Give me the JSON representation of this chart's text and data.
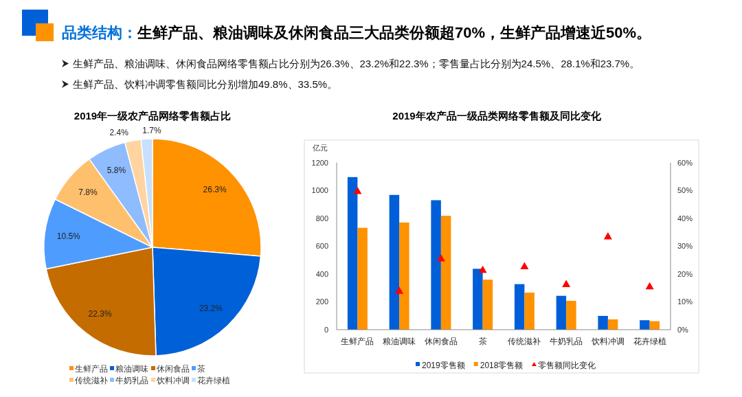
{
  "chart_data": [
    {
      "type": "other",
      "title": "品类结构：",
      "subtitle": "生鲜产品、粮油调味及休闲食品三大品类份额超70%，生鲜产品增速近50%。",
      "annotations": [
        "生鲜产品、粮油调味、休闲食品网络零售额占比分别为26.3%、23.2%和22.3%；零售量占比分别为24.5%、28.1%和23.7%。",
        "生鲜产品、饮料冲调零售额同比分别增加49.8%、33.5%。"
      ]
    },
    {
      "type": "pie",
      "title": "2019年一级农产品网络零售额占比",
      "categories": [
        "生鲜产品",
        "粮油调味",
        "休闲食品",
        "茶",
        "传统滋补",
        "牛奶乳品",
        "饮料冲调",
        "花卉绿植"
      ],
      "values": [
        26.3,
        23.2,
        22.3,
        10.5,
        7.8,
        5.8,
        2.4,
        1.7
      ],
      "value_labels": [
        "26.3%",
        "23.2%",
        "22.3%",
        "10.5%",
        "7.8%",
        "5.8%",
        "2.4%",
        "1.7%"
      ],
      "colors": [
        "#ff9200",
        "#0060d8",
        "#c46c00",
        "#4f9cff",
        "#ffc06e",
        "#8ebcff",
        "#ffd4a0",
        "#c8e0ff"
      ],
      "legend": "bottom"
    },
    {
      "type": "bar",
      "title": "2019年农产品一级品类网络零售额及同比变化",
      "ylabel": "亿元",
      "categories": [
        "生鲜产品",
        "粮油调味",
        "休闲食品",
        "茶",
        "传统滋补",
        "牛奶乳品",
        "饮料冲调",
        "花卉绿植"
      ],
      "series": [
        {
          "name": "2019零售额",
          "color": "#005fd8",
          "values": [
            1095,
            967,
            929,
            437,
            327,
            243,
            99,
            68
          ]
        },
        {
          "name": "2018零售额",
          "color": "#ff9200",
          "values": [
            731,
            769,
            817,
            359,
            266,
            207,
            74,
            61
          ]
        },
        {
          "name": "零售额同比变化",
          "type": "scatter",
          "axis": "y2",
          "marker": "triangle",
          "color": "#ff0000",
          "values": [
            49.8,
            14.0,
            25.6,
            21.5,
            22.8,
            16.4,
            33.5,
            15.6
          ]
        }
      ],
      "ylim": [
        0,
        1200
      ],
      "yticks": [
        0,
        200,
        400,
        600,
        800,
        1000,
        1200
      ],
      "y2lim": [
        0,
        60
      ],
      "y2ticks": [
        {
          "value": 0,
          "label": "0%"
        },
        {
          "value": 10,
          "label": "10%"
        },
        {
          "value": 20,
          "label": "20%"
        },
        {
          "value": 30,
          "label": "30%"
        },
        {
          "value": 40,
          "label": "40%"
        },
        {
          "value": 50,
          "label": "50%"
        },
        {
          "value": 60,
          "label": "60%"
        }
      ],
      "grid": false,
      "legend": "bottom"
    }
  ]
}
